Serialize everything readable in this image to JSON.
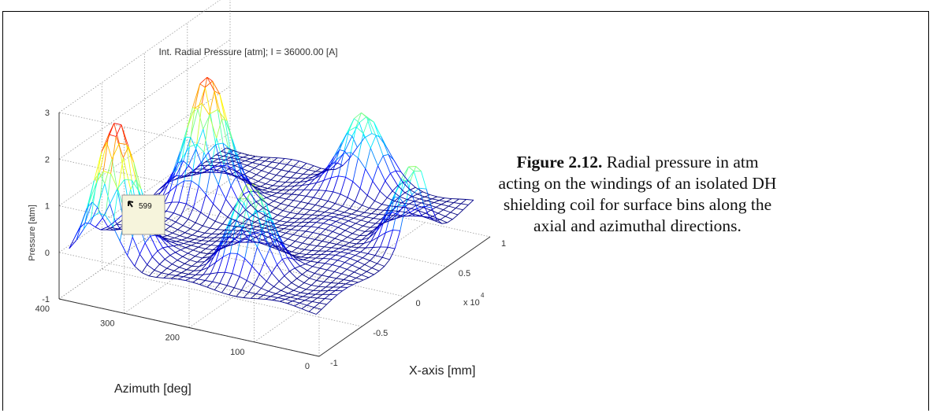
{
  "figure": {
    "label": "Figure 2.12.",
    "text": " Radial pressure in atm acting on the windings of an isolated DH shielding coil for surface bins along the axial and azimuthal directions."
  },
  "chart_data": {
    "type": "surface-mesh",
    "title": "Int. Radial Pressure [atm]; I = 36000.00 [A]",
    "xlabel": "X-axis [mm]",
    "ylabel": "Azimuth [deg]",
    "zlabel": "Pressure [atm]",
    "x_ticks": [
      "-1",
      "-0.5",
      "0",
      "0.5",
      "1"
    ],
    "x_multiplier": "x 10",
    "x_multiplier_exp": "4",
    "y_ticks": [
      "0",
      "100",
      "200",
      "300",
      "400"
    ],
    "z_ticks": [
      "-1",
      "0",
      "1",
      "2",
      "3"
    ],
    "xlim": [
      -10000,
      10000
    ],
    "ylim": [
      0,
      400
    ],
    "zlim": [
      -1,
      3
    ],
    "grid": true,
    "colormap": "jet",
    "datatip": "599",
    "peaks": [
      {
        "x": -7500,
        "azimuth": 345,
        "pressure": 2.7
      },
      {
        "x": 2000,
        "azimuth": 330,
        "pressure": 2.5
      },
      {
        "x": -5500,
        "azimuth": 165,
        "pressure": 1.6
      },
      {
        "x": 8000,
        "azimuth": 170,
        "pressure": 1.4
      },
      {
        "x": 2500,
        "azimuth": 20,
        "pressure": 1.4
      }
    ],
    "baseline_pressure": -0.2
  }
}
